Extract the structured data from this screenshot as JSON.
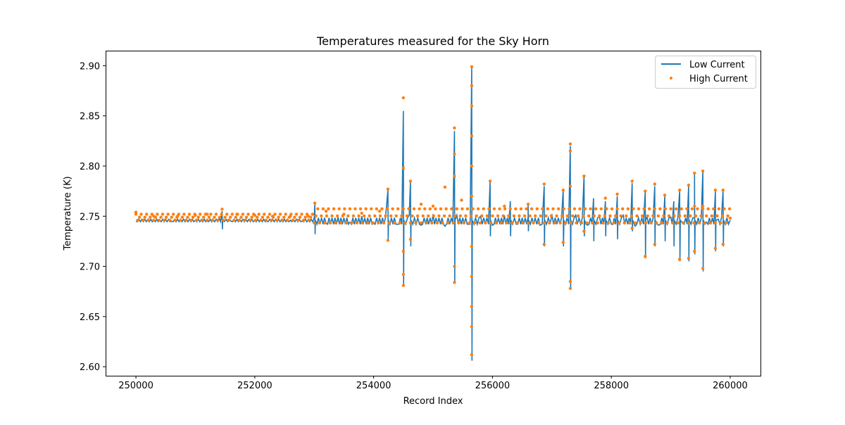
{
  "chart_data": {
    "type": "line",
    "title": "Temperatures measured for the Sky Horn",
    "xlabel": "Record Index",
    "ylabel": "Temperature (K)",
    "xlim": [
      249490,
      260510
    ],
    "ylim": [
      2.591,
      2.915
    ],
    "xticks": [
      250000,
      252000,
      254000,
      256000,
      258000,
      260000
    ],
    "yticks": [
      2.6,
      2.65,
      2.7,
      2.75,
      2.8,
      2.85,
      2.9
    ],
    "xtick_labels": [
      "250000",
      "252000",
      "254000",
      "256000",
      "258000",
      "260000"
    ],
    "ytick_labels": [
      "2.60",
      "2.65",
      "2.70",
      "2.75",
      "2.80",
      "2.85",
      "2.90"
    ],
    "grid": false,
    "legend_position": "top-right",
    "colors": {
      "low": "#1f77b4",
      "high": "#ff7f0e"
    },
    "series": [
      {
        "name": "Low Current",
        "kind": "line",
        "baseline": [
          [
            250000,
            2.745
          ],
          [
            250200,
            2.747
          ],
          [
            250400,
            2.746
          ],
          [
            250600,
            2.745
          ],
          [
            250800,
            2.747
          ],
          [
            251000,
            2.746
          ],
          [
            251200,
            2.745
          ],
          [
            251400,
            2.748
          ],
          [
            251600,
            2.745
          ],
          [
            251800,
            2.747
          ],
          [
            252000,
            2.746
          ],
          [
            252200,
            2.745
          ],
          [
            252400,
            2.747
          ],
          [
            252600,
            2.746
          ],
          [
            252800,
            2.745
          ],
          [
            253000,
            2.748
          ],
          [
            253200,
            2.743
          ],
          [
            253400,
            2.749
          ],
          [
            253600,
            2.744
          ],
          [
            253800,
            2.75
          ],
          [
            254000,
            2.743
          ],
          [
            254200,
            2.749
          ],
          [
            254400,
            2.742
          ],
          [
            254600,
            2.751
          ],
          [
            254800,
            2.741
          ],
          [
            255000,
            2.752
          ],
          [
            255200,
            2.74
          ],
          [
            255400,
            2.751
          ],
          [
            255600,
            2.742
          ],
          [
            255800,
            2.75
          ],
          [
            256000,
            2.741
          ],
          [
            256200,
            2.751
          ],
          [
            256400,
            2.742
          ],
          [
            256600,
            2.749
          ],
          [
            256800,
            2.741
          ],
          [
            257000,
            2.752
          ],
          [
            257200,
            2.74
          ],
          [
            257400,
            2.751
          ],
          [
            257600,
            2.741
          ],
          [
            257800,
            2.75
          ],
          [
            258000,
            2.742
          ],
          [
            258200,
            2.751
          ],
          [
            258400,
            2.74
          ],
          [
            258600,
            2.75
          ],
          [
            258800,
            2.741
          ],
          [
            259000,
            2.749
          ],
          [
            259200,
            2.743
          ],
          [
            259400,
            2.748
          ],
          [
            259600,
            2.744
          ],
          [
            259800,
            2.747
          ],
          [
            260000,
            2.746
          ]
        ],
        "spikes": [
          [
            251450,
            2.755,
            2.737
          ],
          [
            253010,
            2.762,
            2.732
          ],
          [
            254240,
            2.776,
            2.725
          ],
          [
            254500,
            2.855,
            2.68
          ],
          [
            254620,
            2.785,
            2.72
          ],
          [
            255360,
            2.835,
            2.683
          ],
          [
            255650,
            2.898,
            2.606
          ],
          [
            255960,
            2.785,
            2.73
          ],
          [
            256300,
            2.765,
            2.73
          ],
          [
            256600,
            2.762,
            2.735
          ],
          [
            256870,
            2.78,
            2.72
          ],
          [
            257190,
            2.776,
            2.72
          ],
          [
            257310,
            2.82,
            2.677
          ],
          [
            257540,
            2.79,
            2.73
          ],
          [
            257700,
            2.768,
            2.725
          ],
          [
            257900,
            2.765,
            2.73
          ],
          [
            258100,
            2.77,
            2.727
          ],
          [
            258350,
            2.783,
            2.735
          ],
          [
            258570,
            2.775,
            2.708
          ],
          [
            258730,
            2.78,
            2.72
          ],
          [
            258900,
            2.77,
            2.725
          ],
          [
            259050,
            2.765,
            2.72
          ],
          [
            259150,
            2.775,
            2.705
          ],
          [
            259300,
            2.78,
            2.705
          ],
          [
            259400,
            2.792,
            2.712
          ],
          [
            259540,
            2.795,
            2.695
          ],
          [
            259750,
            2.775,
            2.715
          ],
          [
            259880,
            2.775,
            2.72
          ]
        ]
      },
      {
        "name": "High Current",
        "kind": "scatter",
        "points": [
          [
            250000,
            2.754
          ],
          [
            250300,
            2.75
          ],
          [
            250700,
            2.75
          ],
          [
            251000,
            2.751
          ],
          [
            251200,
            2.752
          ],
          [
            251450,
            2.757
          ],
          [
            251700,
            2.752
          ],
          [
            252000,
            2.751
          ],
          [
            252300,
            2.75
          ],
          [
            252600,
            2.75
          ],
          [
            252900,
            2.75
          ],
          [
            253010,
            2.763
          ],
          [
            253200,
            2.755
          ],
          [
            253500,
            2.752
          ],
          [
            253800,
            2.753
          ],
          [
            254100,
            2.755
          ],
          [
            254240,
            2.777
          ],
          [
            254240,
            2.726
          ],
          [
            254500,
            2.868
          ],
          [
            254500,
            2.798
          ],
          [
            254500,
            2.715
          ],
          [
            254500,
            2.692
          ],
          [
            254500,
            2.681
          ],
          [
            254620,
            2.785
          ],
          [
            254620,
            2.727
          ],
          [
            254800,
            2.762
          ],
          [
            255000,
            2.76
          ],
          [
            255200,
            2.779
          ],
          [
            255360,
            2.838
          ],
          [
            255360,
            2.812
          ],
          [
            255360,
            2.79
          ],
          [
            255360,
            2.7
          ],
          [
            255360,
            2.684
          ],
          [
            255480,
            2.766
          ],
          [
            255650,
            2.899
          ],
          [
            255650,
            2.88
          ],
          [
            255650,
            2.86
          ],
          [
            255650,
            2.83
          ],
          [
            255650,
            2.8
          ],
          [
            255650,
            2.77
          ],
          [
            255650,
            2.72
          ],
          [
            255650,
            2.69
          ],
          [
            255650,
            2.66
          ],
          [
            255650,
            2.64
          ],
          [
            255650,
            2.612
          ],
          [
            255960,
            2.785
          ],
          [
            256200,
            2.76
          ],
          [
            256600,
            2.762
          ],
          [
            256870,
            2.782
          ],
          [
            256870,
            2.722
          ],
          [
            257190,
            2.776
          ],
          [
            257190,
            2.724
          ],
          [
            257310,
            2.822
          ],
          [
            257310,
            2.815
          ],
          [
            257310,
            2.78
          ],
          [
            257310,
            2.685
          ],
          [
            257310,
            2.678
          ],
          [
            257540,
            2.79
          ],
          [
            257540,
            2.735
          ],
          [
            257900,
            2.768
          ],
          [
            258100,
            2.772
          ],
          [
            258350,
            2.785
          ],
          [
            258350,
            2.738
          ],
          [
            258570,
            2.775
          ],
          [
            258570,
            2.71
          ],
          [
            258730,
            2.782
          ],
          [
            258730,
            2.722
          ],
          [
            258900,
            2.771
          ],
          [
            259150,
            2.776
          ],
          [
            259150,
            2.707
          ],
          [
            259300,
            2.781
          ],
          [
            259300,
            2.708
          ],
          [
            259400,
            2.793
          ],
          [
            259400,
            2.76
          ],
          [
            259400,
            2.715
          ],
          [
            259540,
            2.795
          ],
          [
            259540,
            2.76
          ],
          [
            259540,
            2.698
          ],
          [
            259750,
            2.776
          ],
          [
            259750,
            2.718
          ],
          [
            259880,
            2.776
          ],
          [
            259880,
            2.722
          ],
          [
            260000,
            2.748
          ]
        ]
      }
    ]
  }
}
